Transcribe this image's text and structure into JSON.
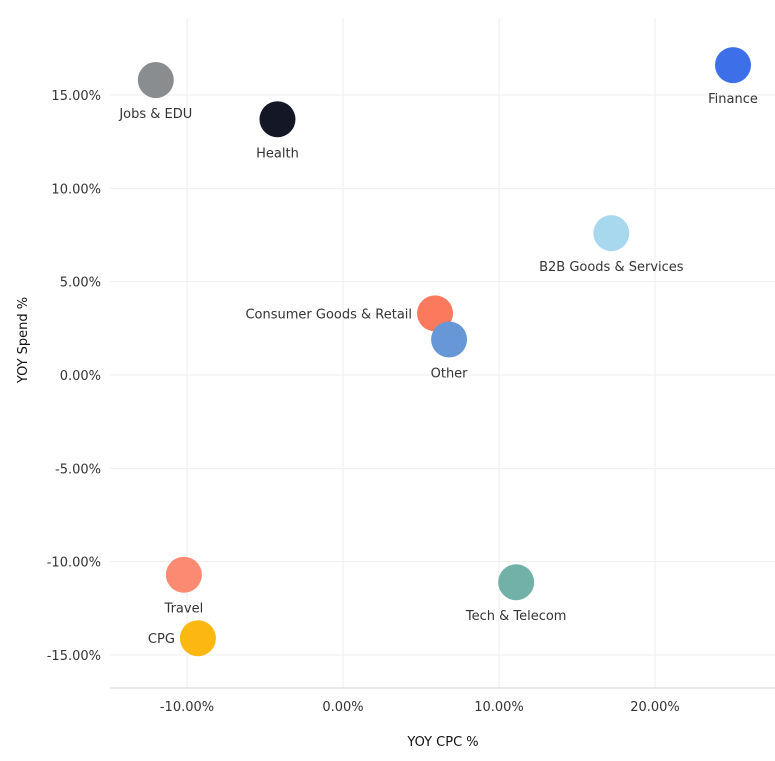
{
  "chart_data": {
    "type": "scatter",
    "title": "",
    "xlabel": "YOY CPC %",
    "ylabel": "YOY Spend %",
    "xlim": [
      -15,
      27
    ],
    "ylim": [
      -16.5,
      18.5
    ],
    "grid": true,
    "x_ticks": [
      -10,
      0,
      10,
      20
    ],
    "x_tick_labels": [
      "-10.00%",
      "0.00%",
      "10.00%",
      "20.00%"
    ],
    "y_ticks": [
      15,
      10,
      5,
      0,
      -5,
      -10,
      -15
    ],
    "y_tick_labels": [
      "15.00%",
      "10.00%",
      "5.00%",
      "0.00%",
      "-5.00%",
      "-10.00%",
      "-15.00%"
    ],
    "points": [
      {
        "label": "Jobs & EDU",
        "x": -12.0,
        "y": 15.8,
        "color": "#8a8d8f",
        "label_pos": "below"
      },
      {
        "label": "Health",
        "x": -4.2,
        "y": 13.7,
        "color": "#141826",
        "label_pos": "below"
      },
      {
        "label": "Finance",
        "x": 25.0,
        "y": 16.6,
        "color": "#3d6fe8",
        "label_pos": "below"
      },
      {
        "label": "B2B Goods & Services",
        "x": 17.2,
        "y": 7.6,
        "color": "#a8d8ee",
        "label_pos": "below"
      },
      {
        "label": "Consumer Goods & Retail",
        "x": 5.9,
        "y": 3.3,
        "color": "#fb7a5e",
        "label_pos": "left"
      },
      {
        "label": "Other",
        "x": 6.8,
        "y": 1.9,
        "color": "#6797d6",
        "label_pos": "below"
      },
      {
        "label": "Travel",
        "x": -10.2,
        "y": -10.7,
        "color": "#fa8a72",
        "label_pos": "below"
      },
      {
        "label": "Tech & Telecom",
        "x": 11.1,
        "y": -11.1,
        "color": "#72b1a8",
        "label_pos": "below"
      },
      {
        "label": "CPG",
        "x": -9.3,
        "y": -14.1,
        "color": "#fdb711",
        "label_pos": "left"
      }
    ]
  }
}
